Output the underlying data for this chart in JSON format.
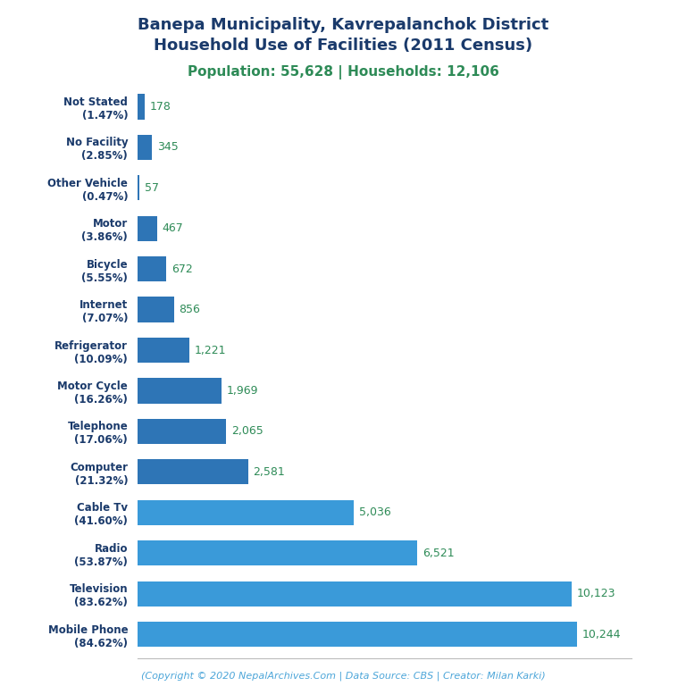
{
  "title_line1": "Banepa Municipality, Kavrepalanchok District",
  "title_line2": "Household Use of Facilities (2011 Census)",
  "subtitle": "Population: 55,628 | Households: 12,106",
  "footer": "(Copyright © 2020 NepalArchives.Com | Data Source: CBS | Creator: Milan Karki)",
  "categories": [
    "Not Stated\n(1.47%)",
    "No Facility\n(2.85%)",
    "Other Vehicle\n(0.47%)",
    "Motor\n(3.86%)",
    "Bicycle\n(5.55%)",
    "Internet\n(7.07%)",
    "Refrigerator\n(10.09%)",
    "Motor Cycle\n(16.26%)",
    "Telephone\n(17.06%)",
    "Computer\n(21.32%)",
    "Cable Tv\n(41.60%)",
    "Radio\n(53.87%)",
    "Television\n(83.62%)",
    "Mobile Phone\n(84.62%)"
  ],
  "values": [
    178,
    345,
    57,
    467,
    672,
    856,
    1221,
    1969,
    2065,
    2581,
    5036,
    6521,
    10123,
    10244
  ],
  "value_labels": [
    "178",
    "345",
    "57",
    "467",
    "672",
    "856",
    "1,221",
    "1,969",
    "2,065",
    "2,581",
    "5,036",
    "6,521",
    "10,123",
    "10,244"
  ],
  "bar_colors": [
    "#2e75b6",
    "#2e75b6",
    "#2e75b6",
    "#2e75b6",
    "#2e75b6",
    "#2e75b6",
    "#2e75b6",
    "#2e75b6",
    "#2e75b6",
    "#2e75b6",
    "#3a9ad9",
    "#3a9ad9",
    "#3a9ad9",
    "#3a9ad9"
  ],
  "title_color": "#1a3a6b",
  "subtitle_color": "#2e8b57",
  "value_color": "#2e8b57",
  "label_color": "#1a3a6b",
  "footer_color": "#4da6d9",
  "background_color": "#ffffff",
  "xlim": [
    0,
    11500
  ]
}
